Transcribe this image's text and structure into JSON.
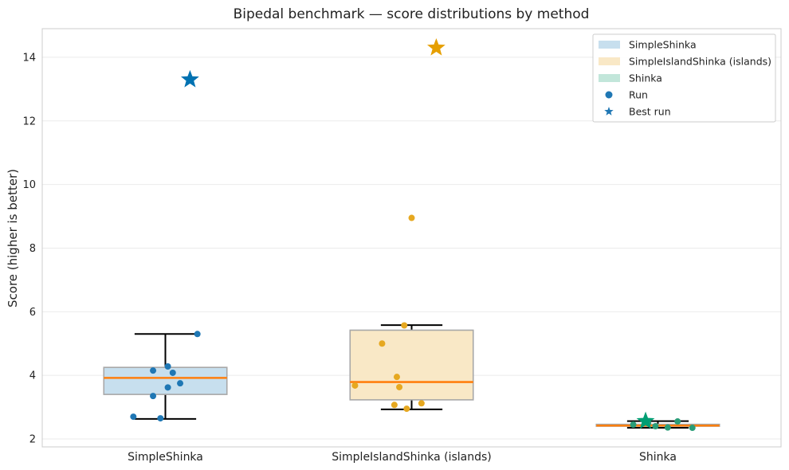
{
  "chart_data": {
    "type": "box",
    "title": "Bipedal benchmark — score distributions by method",
    "xlabel": "",
    "ylabel": "Score (higher is better)",
    "ylim": [
      1.75,
      14.9
    ],
    "yticks": [
      2,
      4,
      6,
      8,
      10,
      12,
      14
    ],
    "grid": true,
    "legend_position": "top-right",
    "categories": [
      "SimpleShinka",
      "SimpleIslandShinka (islands)",
      "Shinka"
    ],
    "legend": [
      {
        "label": "SimpleShinka",
        "kind": "patch",
        "color": "#c7dfee"
      },
      {
        "label": "SimpleIslandShinka (islands)",
        "kind": "patch",
        "color": "#f9e8c6"
      },
      {
        "label": "Shinka",
        "kind": "patch",
        "color": "#c2e6da"
      },
      {
        "label": "Run",
        "kind": "dot",
        "color": "#1f77b4"
      },
      {
        "label": "Best run",
        "kind": "star",
        "color": "#1f77b4"
      }
    ],
    "series": [
      {
        "name": "SimpleShinka",
        "box_color": "#c7dfee",
        "point_color": "#1f77b4",
        "best_color": "#0072b2",
        "q1": 3.4,
        "median": 3.92,
        "q3": 4.25,
        "whisker_low": 2.63,
        "whisker_high": 5.3,
        "runs": [
          {
            "x": -0.05,
            "y": 4.15
          },
          {
            "x": 0.01,
            "y": 4.28
          },
          {
            "x": 0.03,
            "y": 4.08
          },
          {
            "x": 0.06,
            "y": 3.75
          },
          {
            "x": 0.01,
            "y": 3.62
          },
          {
            "x": -0.05,
            "y": 3.35
          },
          {
            "x": 0.13,
            "y": 5.3
          },
          {
            "x": -0.13,
            "y": 2.7
          },
          {
            "x": -0.02,
            "y": 2.65
          }
        ],
        "best": 13.3,
        "best_offset": 0.1
      },
      {
        "name": "SimpleIslandShinka (islands)",
        "box_color": "#f9e8c6",
        "point_color": "#e6a820",
        "best_color": "#e69f00",
        "q1": 3.23,
        "median": 3.79,
        "q3": 5.42,
        "whisker_low": 2.93,
        "whisker_high": 5.58,
        "runs": [
          {
            "x": 0.0,
            "y": 8.95
          },
          {
            "x": -0.03,
            "y": 5.57
          },
          {
            "x": -0.12,
            "y": 5.0
          },
          {
            "x": -0.06,
            "y": 3.95
          },
          {
            "x": -0.23,
            "y": 3.68
          },
          {
            "x": -0.05,
            "y": 3.63
          },
          {
            "x": 0.04,
            "y": 3.12
          },
          {
            "x": -0.07,
            "y": 3.07
          },
          {
            "x": -0.02,
            "y": 2.95
          }
        ],
        "best": 14.3,
        "best_offset": 0.1
      },
      {
        "name": "Shinka",
        "box_color": "#c2e6da",
        "point_color": "#2a9d78",
        "best_color": "#009e73",
        "q1": 2.4,
        "median": 2.42,
        "q3": 2.46,
        "whisker_low": 2.35,
        "whisker_high": 2.56,
        "runs": [
          {
            "x": -0.1,
            "y": 2.45
          },
          {
            "x": -0.01,
            "y": 2.4
          },
          {
            "x": 0.08,
            "y": 2.55
          },
          {
            "x": 0.14,
            "y": 2.35
          },
          {
            "x": 0.04,
            "y": 2.36
          },
          {
            "x": -0.04,
            "y": 2.5
          }
        ],
        "best": 2.56,
        "best_offset": -0.05
      }
    ]
  }
}
